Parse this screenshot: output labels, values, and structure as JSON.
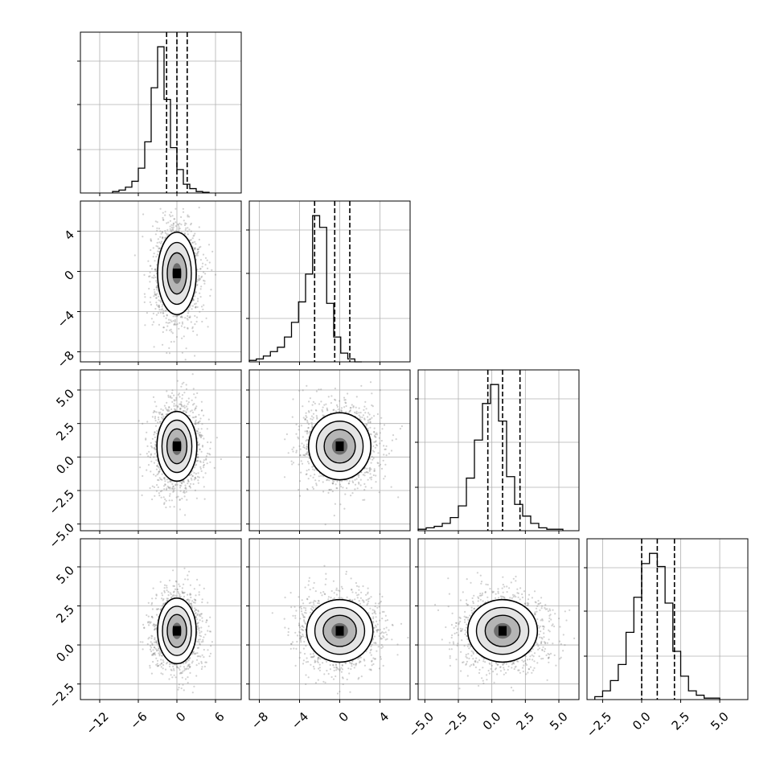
{
  "chart_data": {
    "type": "corner",
    "grid": true,
    "dims": 4,
    "quantile_lines": [
      "dashed",
      "dashed",
      "dashed"
    ],
    "axes": [
      {
        "range": [
          -15.0,
          10.0
        ],
        "ticks": [
          -12,
          -6,
          0,
          6
        ],
        "tick_labels": [
          "−12",
          "−6",
          "0",
          "6"
        ]
      },
      {
        "range": [
          -9.0,
          7.0
        ],
        "ticks": [
          -8,
          -4,
          0,
          4
        ],
        "tick_labels": [
          "−8",
          "−4",
          "0",
          "4"
        ]
      },
      {
        "range": [
          -5.5,
          6.5
        ],
        "ticks": [
          -5.0,
          -2.5,
          0.0,
          2.5,
          5.0
        ],
        "tick_labels": [
          "−5.0",
          "−2.5",
          "0.0",
          "2.5",
          "5.0"
        ]
      },
      {
        "range": [
          -3.5,
          6.8
        ],
        "ticks": [
          -2.5,
          0.0,
          2.5,
          5.0
        ],
        "tick_labels": [
          "−2.5",
          "0.0",
          "2.5",
          "5.0"
        ]
      }
    ],
    "histograms": [
      {
        "bin_start": -10.0,
        "bin_width": 1.0,
        "counts": [
          0.01,
          0.02,
          0.04,
          0.08,
          0.17,
          0.35,
          0.72,
          1.0,
          0.64,
          0.31,
          0.16,
          0.06,
          0.03,
          0.01,
          0.005
        ],
        "quantiles": [
          -1.6,
          0.0,
          1.6
        ]
      },
      {
        "bin_start": -9.0,
        "bin_width": 0.7,
        "counts": [
          0.01,
          0.02,
          0.04,
          0.07,
          0.1,
          0.17,
          0.27,
          0.41,
          0.6,
          1.0,
          0.92,
          0.4,
          0.17,
          0.06,
          0.02,
          0.0
        ],
        "quantiles": [
          -2.5,
          -0.5,
          1.0
        ]
      },
      {
        "bin_start": -5.5,
        "bin_width": 0.6,
        "counts": [
          0.01,
          0.02,
          0.03,
          0.05,
          0.09,
          0.17,
          0.36,
          0.62,
          0.87,
          1.0,
          0.75,
          0.37,
          0.18,
          0.1,
          0.05,
          0.02,
          0.01,
          0.01
        ],
        "quantiles": [
          -0.3,
          0.8,
          2.1
        ]
      },
      {
        "bin_start": -3.0,
        "bin_width": 0.5,
        "counts": [
          0.02,
          0.06,
          0.13,
          0.24,
          0.46,
          0.7,
          0.93,
          1.0,
          0.91,
          0.66,
          0.33,
          0.16,
          0.06,
          0.03,
          0.01,
          0.01
        ],
        "quantiles": [
          0.0,
          1.0,
          2.1
        ]
      }
    ],
    "pairs": [
      {
        "x": 0,
        "y": 1,
        "center": [
          0.0,
          -0.2
        ],
        "sigma": [
          1.5,
          2.05
        ],
        "rho": 0.0
      },
      {
        "x": 0,
        "y": 2,
        "center": [
          0.0,
          0.8
        ],
        "sigma": [
          1.55,
          1.3
        ],
        "rho": 0.0
      },
      {
        "x": 1,
        "y": 2,
        "center": [
          0.0,
          0.8
        ],
        "sigma": [
          1.55,
          1.25
        ],
        "rho": 0.0
      },
      {
        "x": 0,
        "y": 3,
        "center": [
          0.0,
          0.9
        ],
        "sigma": [
          1.5,
          1.05
        ],
        "rho": 0.0
      },
      {
        "x": 1,
        "y": 3,
        "center": [
          0.0,
          0.9
        ],
        "sigma": [
          1.65,
          1.0
        ],
        "rho": 0.0
      },
      {
        "x": 2,
        "y": 3,
        "center": [
          0.8,
          0.9
        ],
        "sigma": [
          1.3,
          1.0
        ],
        "rho": 0.0
      }
    ],
    "contour_levels": [
      0.5,
      1.0,
      1.5,
      2.0
    ]
  }
}
